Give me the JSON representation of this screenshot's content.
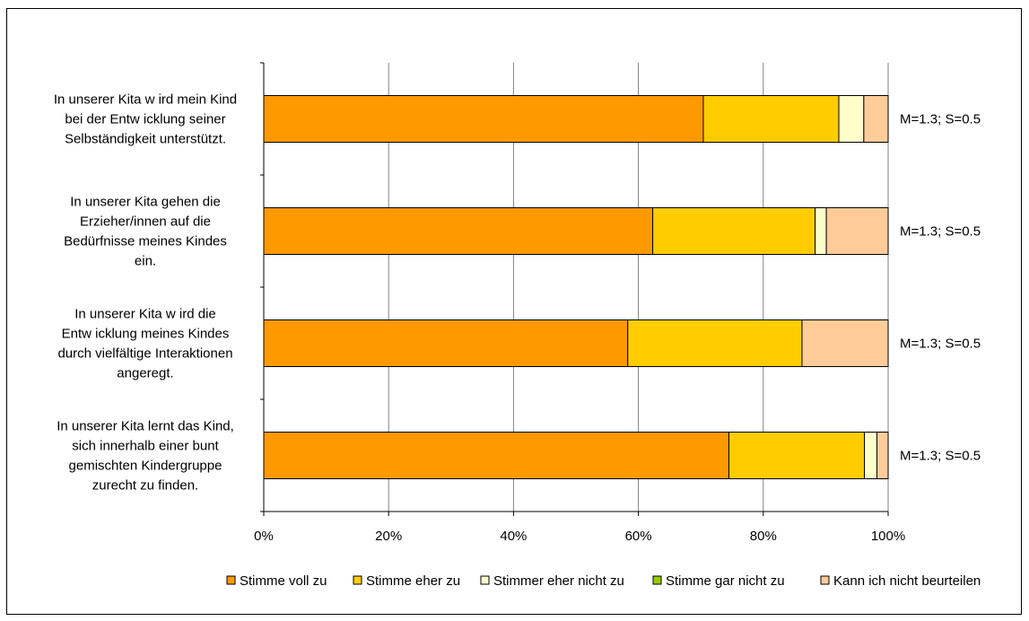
{
  "chart_data": {
    "type": "bar",
    "orientation": "horizontal",
    "stacked": "percent",
    "title": "",
    "xlabel": "",
    "ylabel": "",
    "xlim": [
      0,
      100
    ],
    "x_ticks": [
      "0%",
      "20%",
      "40%",
      "60%",
      "80%",
      "100%"
    ],
    "grid": true,
    "legend_position": "bottom",
    "categories": [
      [
        "In unserer Kita w ird mein Kind",
        "bei der Entw icklung seiner",
        "Selbständigkeit unterstützt."
      ],
      [
        "In unserer Kita gehen die",
        "Erzieher/innen auf die",
        "Bedürfnisse meines Kindes",
        "ein."
      ],
      [
        "In unserer Kita w ird die",
        "Entw icklung meines Kindes",
        "durch vielfältige Interaktionen",
        "angeregt."
      ],
      [
        "In unserer Kita lernt das Kind,",
        "sich innerhalb einer bunt",
        "gemischten Kindergruppe",
        "zurecht zu finden."
      ]
    ],
    "annotations": [
      "M=1.3; S=0.5",
      "M=1.3; S=0.5",
      "M=1.3; S=0.5",
      "M=1.3; S=0.5"
    ],
    "series": [
      {
        "name": "Stimme voll zu",
        "color": "#FF9900",
        "values": [
          70.4,
          62.3,
          58.3,
          74.5
        ]
      },
      {
        "name": "Stimme eher zu",
        "color": "#FFCC00",
        "values": [
          21.7,
          26.0,
          27.9,
          21.7
        ]
      },
      {
        "name": "Stimmer eher nicht zu",
        "color": "#FFFFCC",
        "values": [
          4.0,
          1.8,
          0.0,
          2.0
        ]
      },
      {
        "name": "Stimme gar nicht zu",
        "color": "#99CC00",
        "values": [
          0.0,
          0.0,
          0.0,
          0.0
        ]
      },
      {
        "name": "Kann ich nicht beurteilen",
        "color": "#FFCC99",
        "values": [
          3.9,
          9.9,
          13.8,
          1.8
        ]
      }
    ]
  }
}
